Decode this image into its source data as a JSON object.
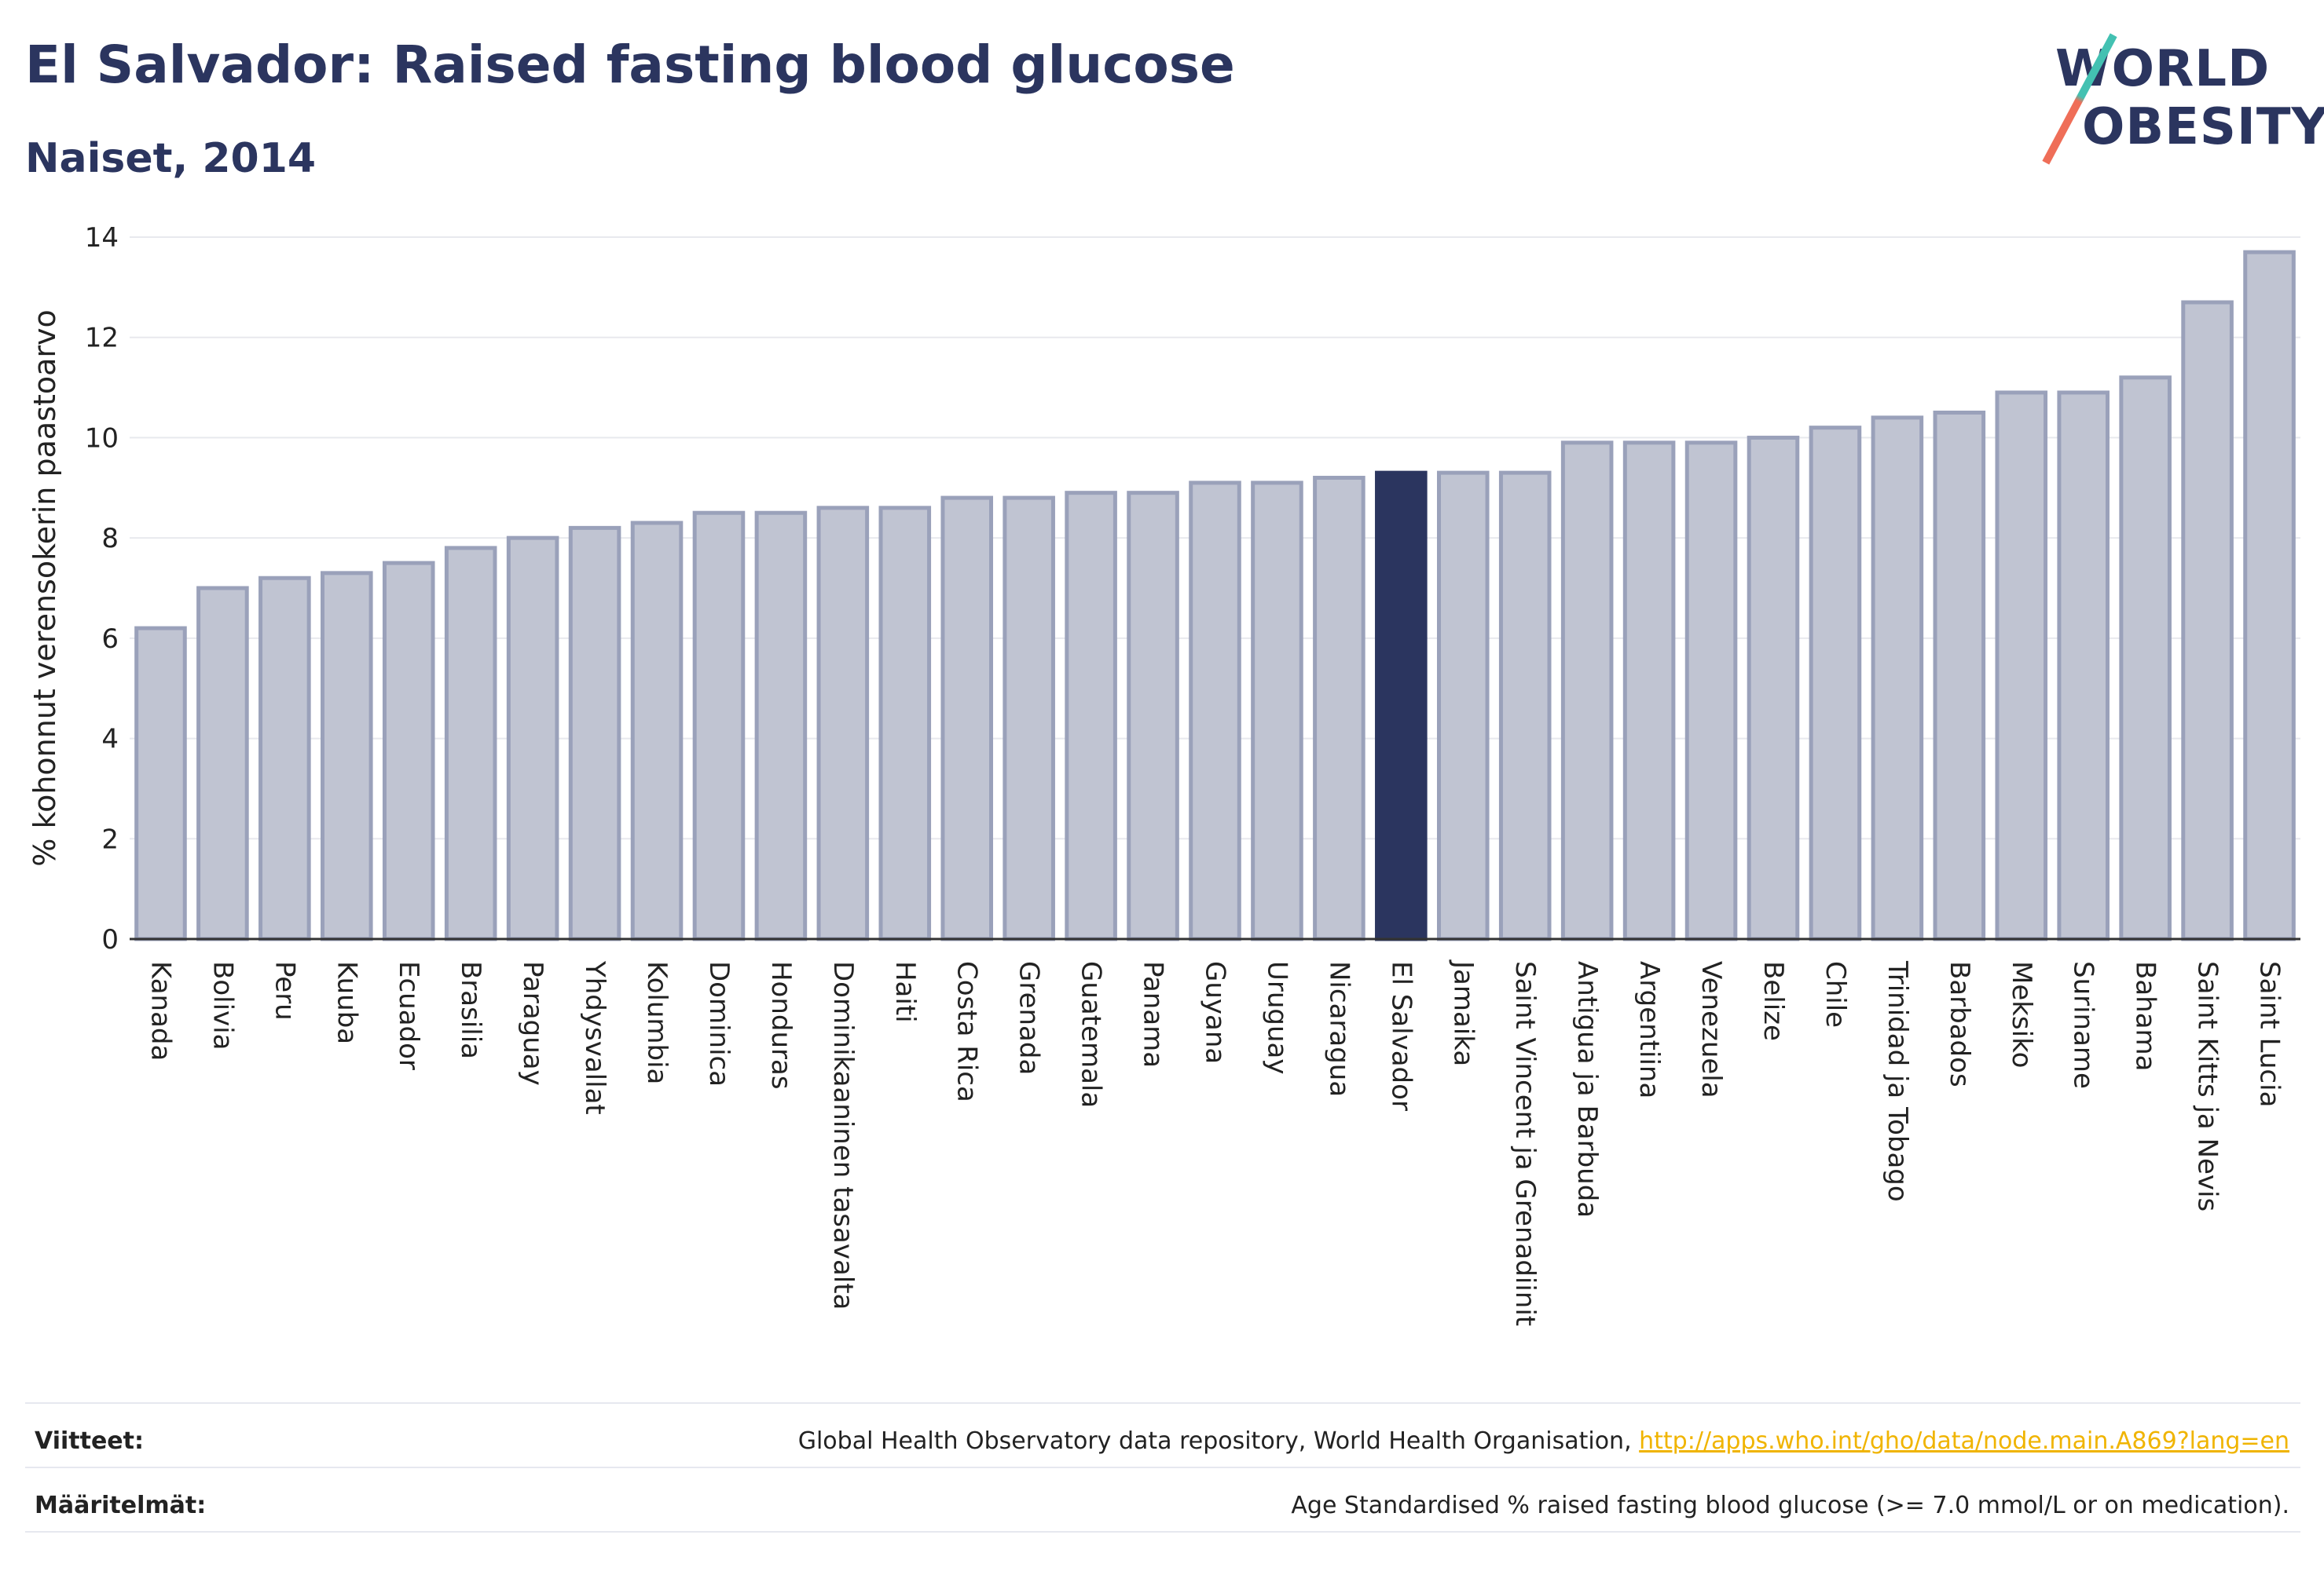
{
  "header": {
    "title": "El Salvador: Raised fasting blood glucose",
    "subtitle": "Naiset, 2014"
  },
  "logo": {
    "line1": "WORLD",
    "line2": "OBESITY",
    "colors": {
      "text": "#2b355f",
      "slash_top": "#43c1b2",
      "slash_bottom": "#ef6e58"
    }
  },
  "colors": {
    "bar_fill": "#c0c4d2",
    "bar_stroke": "#9aa1ba",
    "highlight_fill": "#2b355f",
    "axis": "#333333",
    "grid": "#e8e9ee",
    "link": "#f0b400"
  },
  "chart_data": {
    "type": "bar",
    "ylabel": "% kohonnut verensokerin paastoarvo",
    "xlabel": "",
    "ylim": [
      0,
      14
    ],
    "yticks": [
      0,
      2,
      4,
      6,
      8,
      10,
      12,
      14
    ],
    "grid": true,
    "highlight": "El Salvador",
    "categories": [
      "Kanada",
      "Bolivia",
      "Peru",
      "Kuuba",
      "Ecuador",
      "Brasilia",
      "Paraguay",
      "Yhdysvallat",
      "Kolumbia",
      "Dominica",
      "Honduras",
      "Dominikaaninen tasavalta",
      "Haiti",
      "Costa Rica",
      "Grenada",
      "Guatemala",
      "Panama",
      "Guyana",
      "Uruguay",
      "Nicaragua",
      "El Salvador",
      "Jamaika",
      "Saint Vincent ja Grenadiinit",
      "Antigua ja Barbuda",
      "Argentiina",
      "Venezuela",
      "Belize",
      "Chile",
      "Trinidad ja Tobago",
      "Barbados",
      "Meksiko",
      "Suriname",
      "Bahama",
      "Saint Kitts ja Nevis",
      "Saint Lucia"
    ],
    "values": [
      6.2,
      7.0,
      7.2,
      7.3,
      7.5,
      7.8,
      8.0,
      8.2,
      8.3,
      8.5,
      8.5,
      8.6,
      8.6,
      8.8,
      8.8,
      8.9,
      8.9,
      9.1,
      9.1,
      9.2,
      9.3,
      9.3,
      9.3,
      9.9,
      9.9,
      9.9,
      10.0,
      10.2,
      10.4,
      10.5,
      10.9,
      10.9,
      11.2,
      12.7,
      13.7
    ]
  },
  "footer": {
    "sources_label": "Viitteet:",
    "sources_text": "Global Health Observatory data repository, World Health Organisation, ",
    "sources_link": "http://apps.who.int/gho/data/node.main.A869?lang=en",
    "definitions_label": "Määritelmät:",
    "definitions_text": "Age Standardised % raised fasting blood glucose (>= 7.0 mmol/L or on medication)."
  }
}
